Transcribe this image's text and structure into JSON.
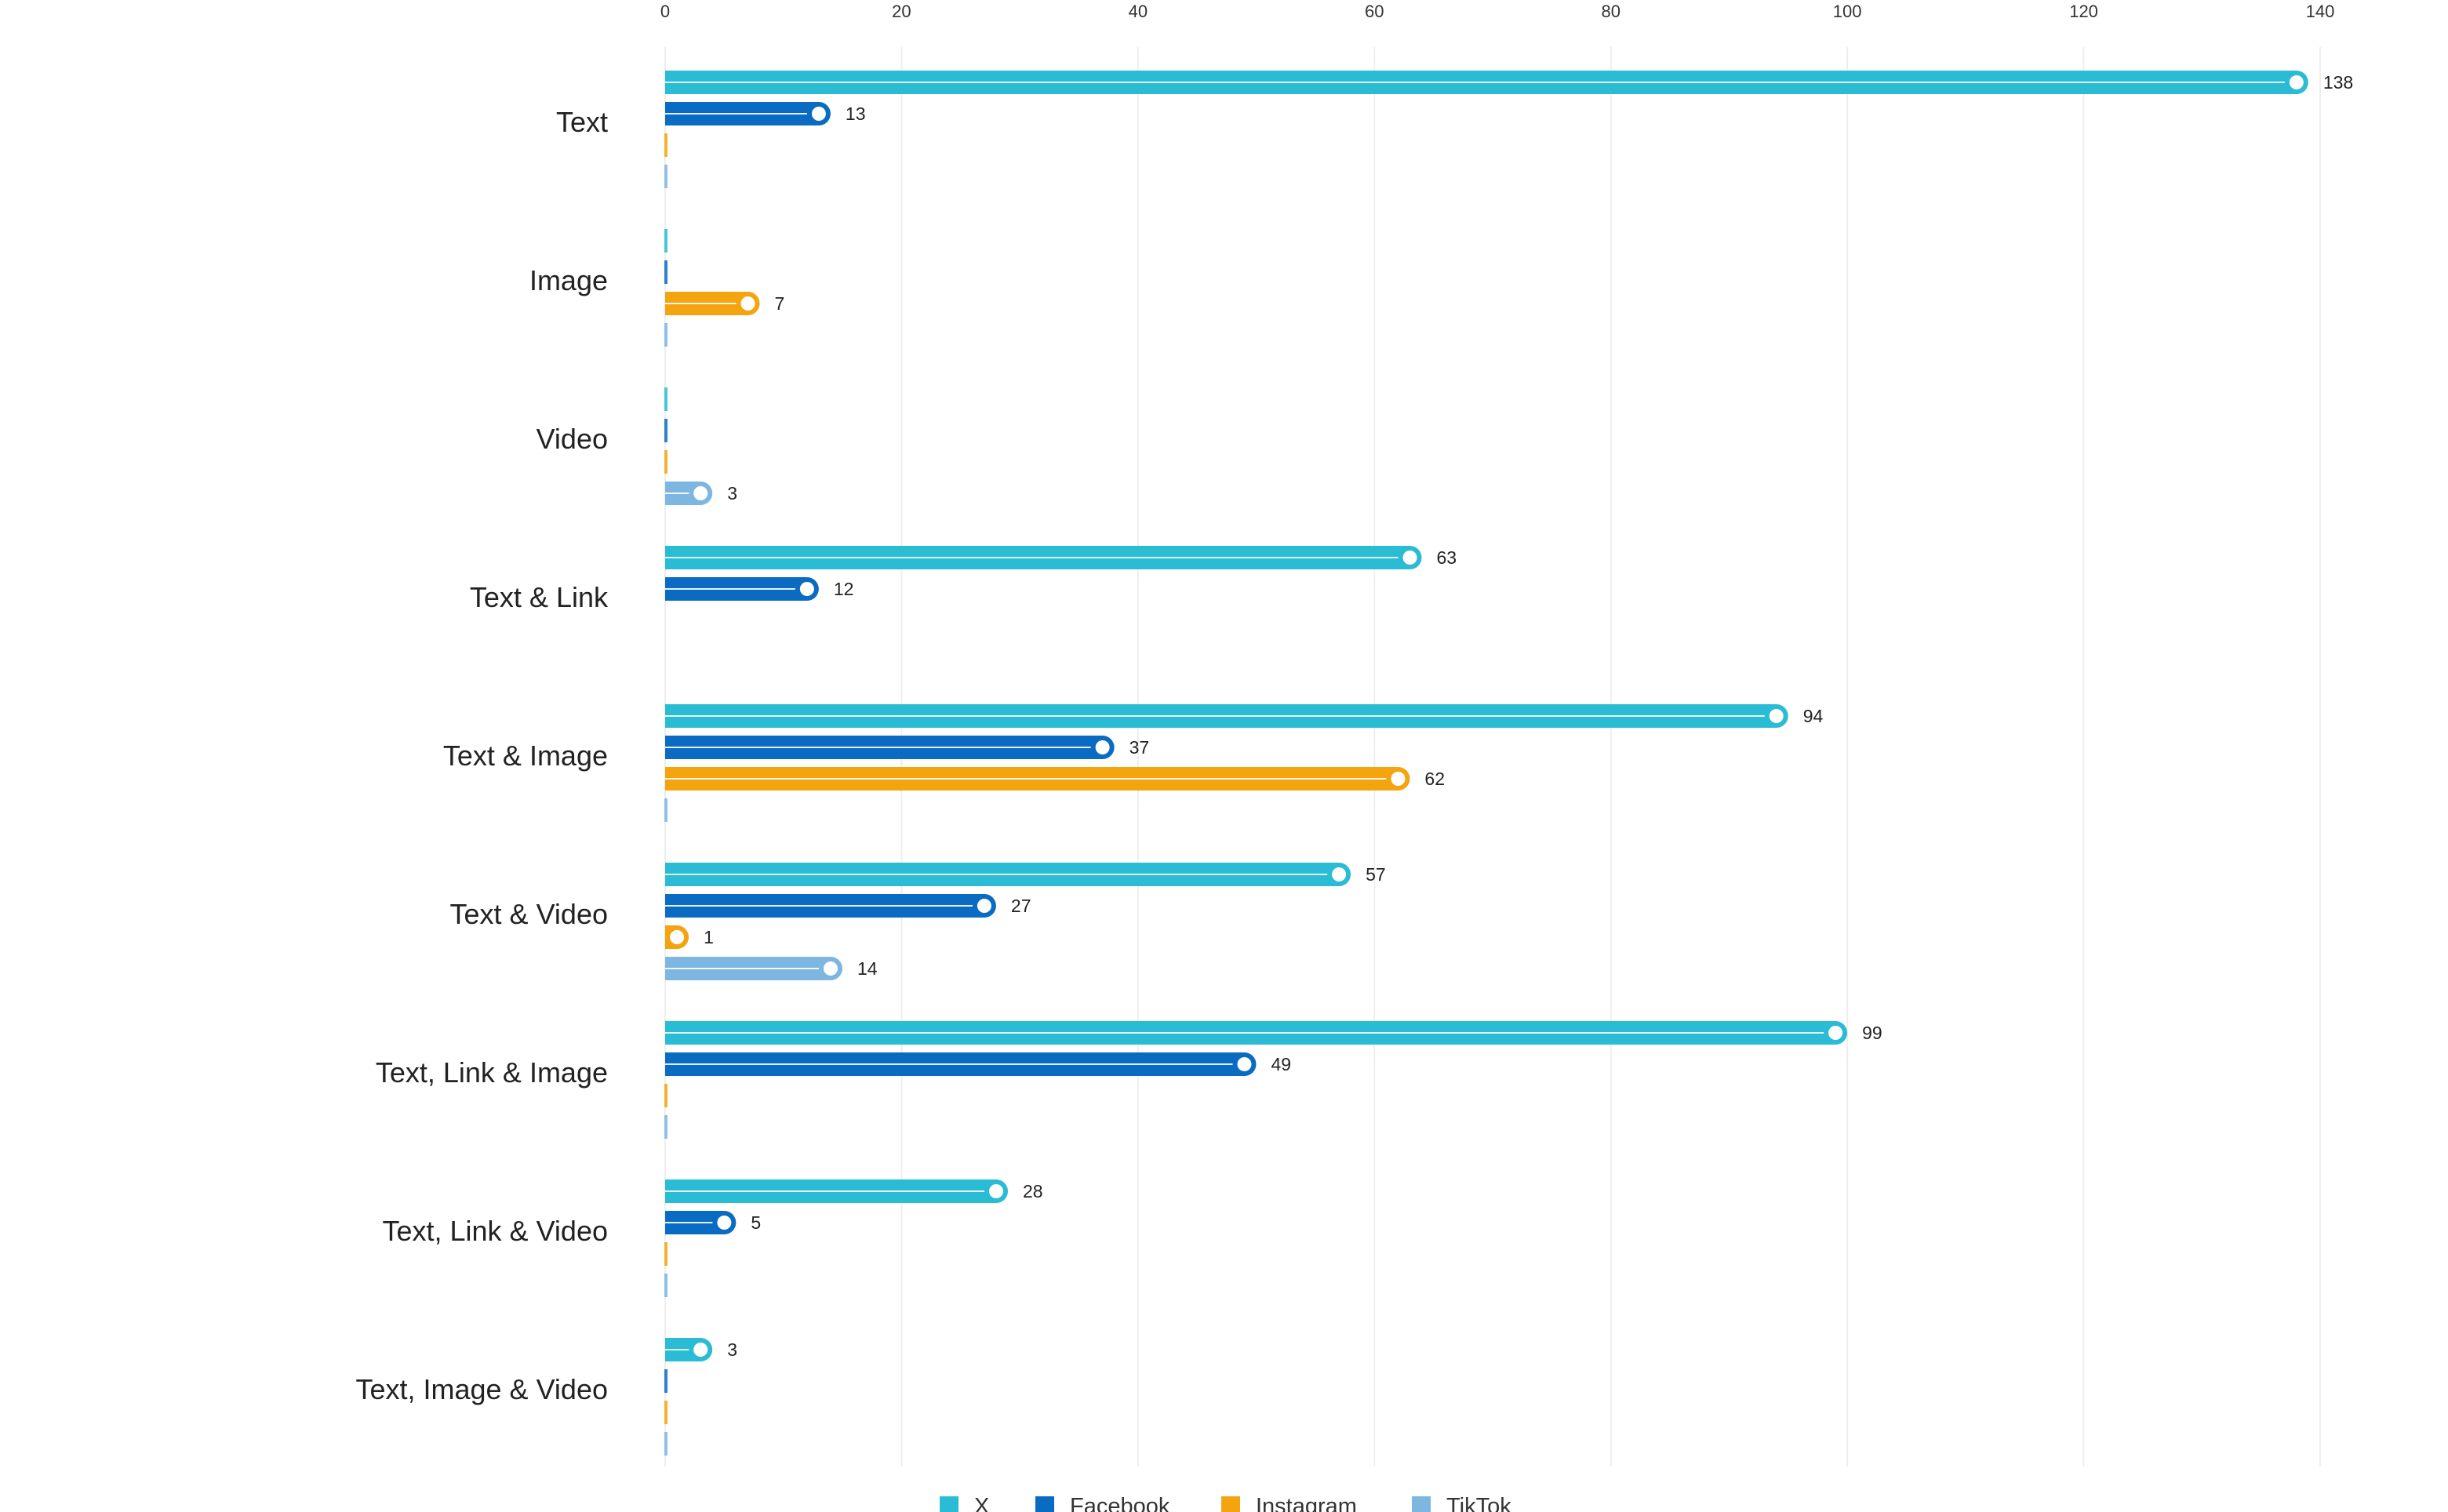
{
  "chart_data": {
    "type": "bar",
    "orientation": "horizontal",
    "title": "",
    "xlabel": "",
    "ylabel": "",
    "xlim": [
      0,
      140
    ],
    "x_ticks": [
      0,
      20,
      40,
      60,
      80,
      100,
      120,
      140
    ],
    "grid": "vertical",
    "legend_position": "bottom",
    "categories": [
      "Text",
      "Image",
      "Video",
      "Text & Link",
      "Text & Image",
      "Text & Video",
      "Text, Link & Image",
      "Text, Link & Video",
      "Text, Image & Video"
    ],
    "series": [
      {
        "name": "X",
        "color": "#29BCD4",
        "values": [
          138,
          0,
          0,
          63,
          94,
          57,
          99,
          28,
          3
        ]
      },
      {
        "name": "Facebook",
        "color": "#0A6BC3",
        "values": [
          13,
          0,
          0,
          12,
          37,
          27,
          49,
          5,
          0
        ]
      },
      {
        "name": "Instagram",
        "color": "#F3A40F",
        "values": [
          0,
          7,
          0,
          null,
          62,
          1,
          0,
          0,
          0
        ]
      },
      {
        "name": "TikTok",
        "color": "#7EB6E2",
        "values": [
          0,
          0,
          3,
          null,
          0,
          14,
          0,
          0,
          0
        ]
      }
    ]
  }
}
